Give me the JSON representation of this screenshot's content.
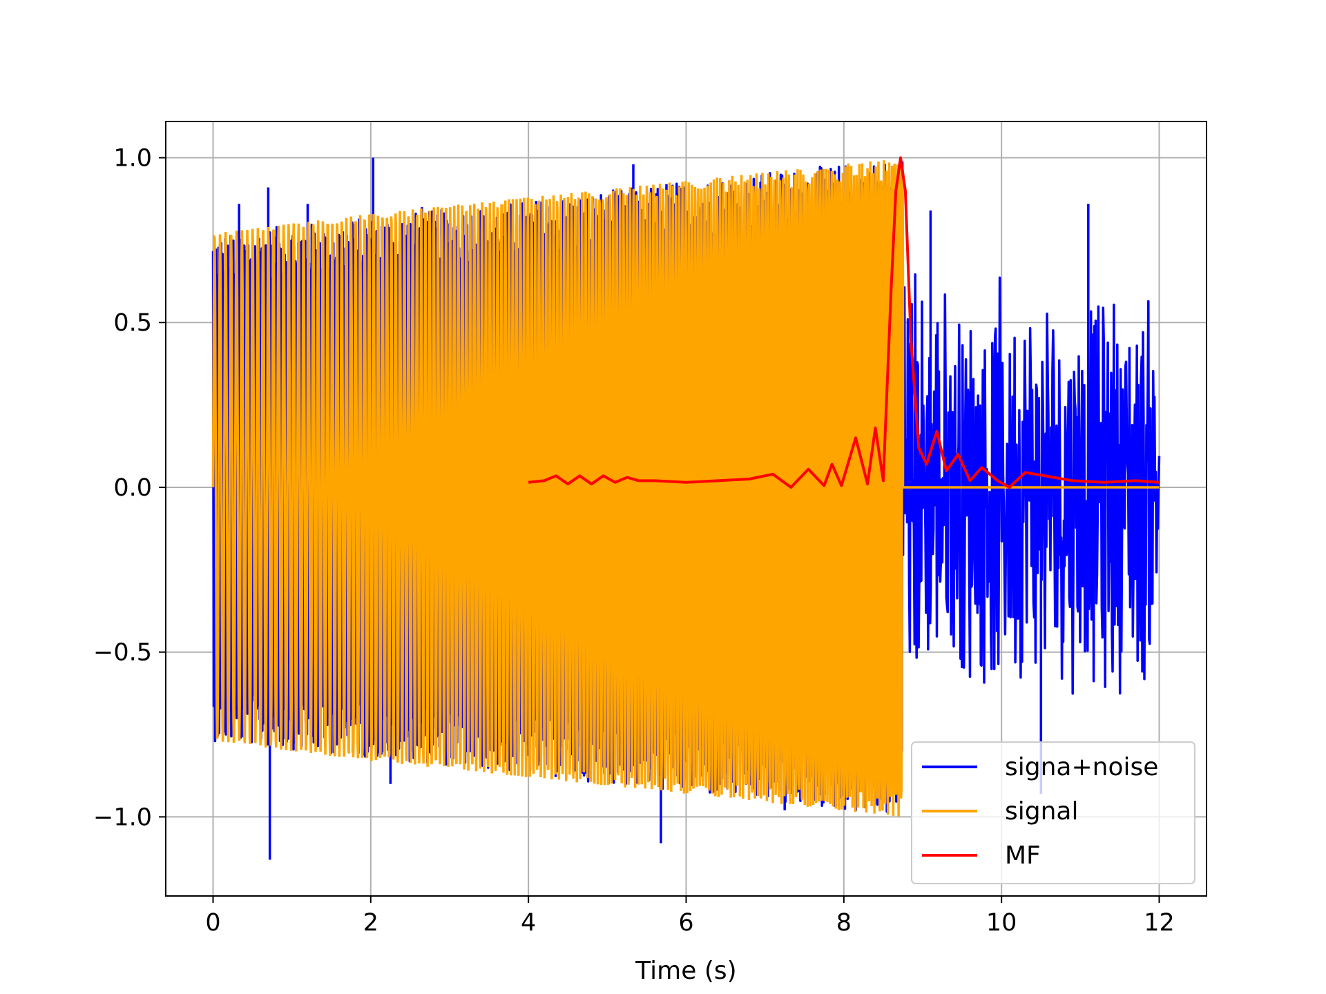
{
  "chart_data": {
    "type": "line",
    "title": "",
    "xlabel": "Time (s)",
    "ylabel": "",
    "xlim": [
      -0.6,
      12.6
    ],
    "ylim": [
      -1.24,
      1.11
    ],
    "grid": true,
    "legend_position": "lower-right",
    "xticks": [
      0,
      2,
      4,
      6,
      8,
      10,
      12
    ],
    "xtick_labels": [
      "0",
      "2",
      "4",
      "6",
      "8",
      "10",
      "12"
    ],
    "yticks": [
      1.0,
      0.5,
      0.0,
      -0.5,
      -1.0
    ],
    "ytick_labels": [
      "1.0",
      "0.5",
      "0.0",
      "−0.5",
      "−1.0"
    ],
    "series": [
      {
        "name": "signa+noise",
        "color": "#0000ff",
        "description_points": {
          "x_range": [
            0,
            12
          ],
          "envelope_upper": [
            [
              0,
              0.77
            ],
            [
              2,
              0.82
            ],
            [
              4,
              0.87
            ],
            [
              6,
              0.93
            ],
            [
              8.75,
              1.0
            ],
            [
              9,
              0.65
            ],
            [
              12,
              0.65
            ]
          ],
          "envelope_lower": [
            [
              0,
              -0.77
            ],
            [
              2,
              -0.82
            ],
            [
              4,
              -0.87
            ],
            [
              6,
              -0.93
            ],
            [
              8.75,
              -1.0
            ],
            [
              9,
              -0.65
            ],
            [
              12,
              -0.65
            ]
          ],
          "spikes": [
            [
              0.33,
              0.86
            ],
            [
              0.7,
              0.91
            ],
            [
              0.72,
              -1.13
            ],
            [
              1.2,
              0.86
            ],
            [
              2.03,
              1.0
            ],
            [
              2.25,
              -0.9
            ],
            [
              2.65,
              0.85
            ],
            [
              5.33,
              0.98
            ],
            [
              5.68,
              -1.08
            ],
            [
              5.75,
              0.92
            ],
            [
              7.25,
              -0.98
            ],
            [
              9.1,
              0.84
            ],
            [
              10.5,
              -0.93
            ],
            [
              11.1,
              0.86
            ]
          ]
        }
      },
      {
        "name": "signal",
        "color": "#ffa500",
        "description_points": {
          "x_range": [
            0,
            8.75
          ],
          "envelope": [
            [
              0,
              0.77
            ],
            [
              2,
              0.83
            ],
            [
              4,
              0.88
            ],
            [
              6,
              0.93
            ],
            [
              8.75,
              1.0
            ]
          ],
          "after": [
            [
              8.75,
              0.0
            ],
            [
              12,
              0.0
            ]
          ]
        }
      },
      {
        "name": "MF",
        "color": "#ff0000",
        "x": [
          4.0,
          4.2,
          4.35,
          4.5,
          4.65,
          4.8,
          4.95,
          5.1,
          5.25,
          5.4,
          5.6,
          6.0,
          6.4,
          6.8,
          7.1,
          7.33,
          7.55,
          7.75,
          7.85,
          7.97,
          8.15,
          8.3,
          8.4,
          8.5,
          8.6,
          8.66,
          8.72,
          8.78,
          8.85,
          8.95,
          9.05,
          9.18,
          9.3,
          9.45,
          9.6,
          9.75,
          9.95,
          10.1,
          10.3,
          10.55,
          10.9,
          11.3,
          11.7,
          12.0
        ],
        "y": [
          0.015,
          0.02,
          0.035,
          0.01,
          0.035,
          0.01,
          0.035,
          0.015,
          0.03,
          0.02,
          0.02,
          0.015,
          0.02,
          0.025,
          0.04,
          0.0,
          0.055,
          0.005,
          0.07,
          0.005,
          0.15,
          0.01,
          0.18,
          0.02,
          0.6,
          0.9,
          1.0,
          0.9,
          0.45,
          0.12,
          0.07,
          0.17,
          0.05,
          0.1,
          0.02,
          0.06,
          0.02,
          0.0,
          0.045,
          0.035,
          0.02,
          0.015,
          0.02,
          0.015
        ]
      }
    ]
  }
}
